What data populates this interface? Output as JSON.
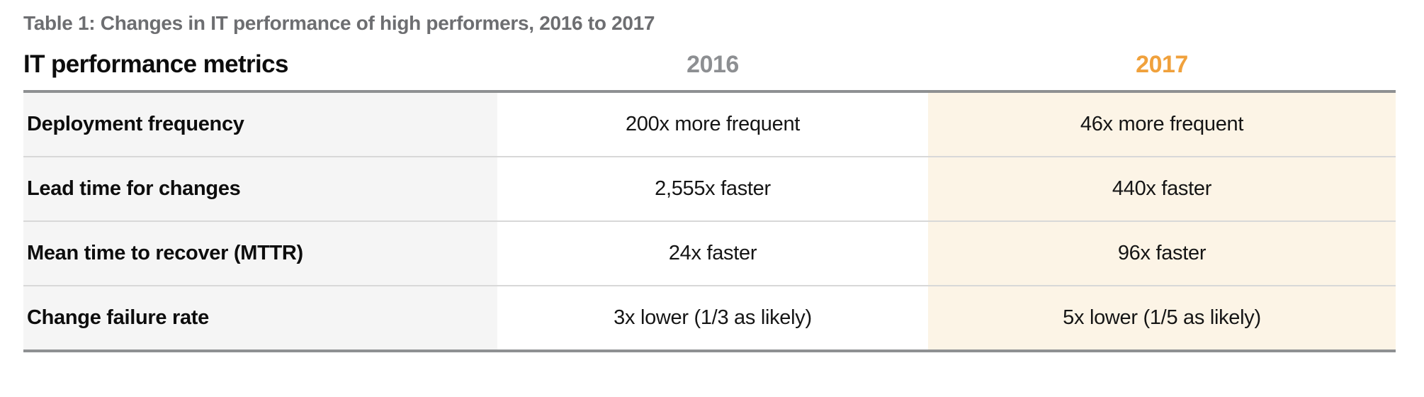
{
  "colors": {
    "caption_gray": "#6d6e71",
    "col2016_gray": "#8d8f92",
    "col2017_orange": "#f0a13c",
    "metric_col_bg": "#f5f5f5",
    "col2017_bg": "#fcf4e6",
    "row_divider": "#d8d8d8",
    "table_border": "#8e9092",
    "body_text": "#151515"
  },
  "chart_data": {
    "type": "table",
    "title": "Table 1: Changes in IT performance of high performers, 2016 to 2017",
    "columns": [
      "IT performance metrics",
      "2016",
      "2017"
    ],
    "rows": [
      [
        "Deployment frequency",
        "200x more frequent",
        "46x more frequent"
      ],
      [
        "Lead time for changes",
        "2,555x faster",
        "440x faster"
      ],
      [
        "Mean time to recover (MTTR)",
        "24x faster",
        "96x faster"
      ],
      [
        "Change failure rate",
        "3x lower (1/3 as likely)",
        "5x lower (1/5 as likely)"
      ]
    ]
  }
}
